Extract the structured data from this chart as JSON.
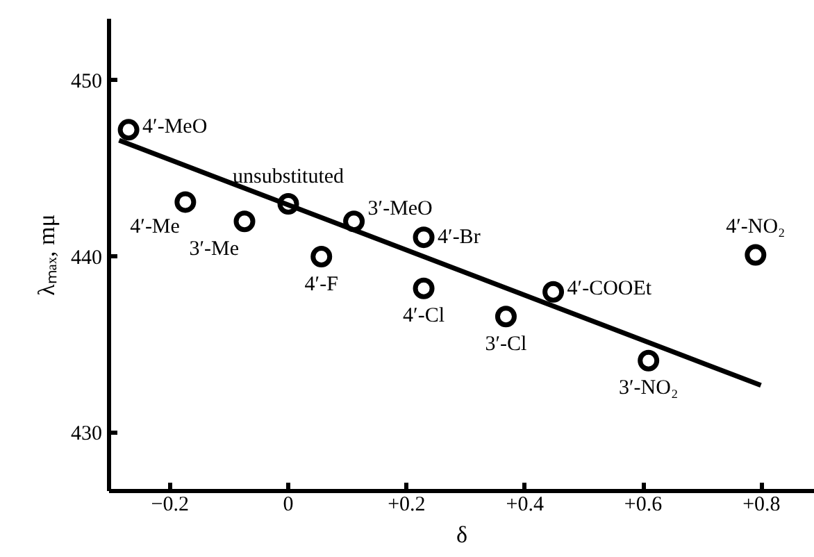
{
  "chart_data": {
    "type": "scatter",
    "xlabel": "δ",
    "ylabel": "λₘₐₓ, mμ",
    "xlim": [
      -0.303,
      0.89
    ],
    "ylim": [
      426.7,
      453.5
    ],
    "xticks": [
      {
        "value": -0.2,
        "label": "−0.2"
      },
      0,
      {
        "value": 0.2,
        "label": "+0.2"
      },
      {
        "value": 0.4,
        "label": "+0.4"
      },
      {
        "value": 0.6,
        "label": "+0.6"
      },
      {
        "value": 0.8,
        "label": "+0.8"
      }
    ],
    "yticks": [
      430,
      440,
      450
    ],
    "grid": false,
    "series": [
      {
        "color": "#000000",
        "marker": "circle",
        "x": [
          -0.27,
          -0.174,
          -0.074,
          0,
          0.056,
          0.111,
          0.229,
          0.229,
          0.368,
          0.448,
          0.609,
          0.79
        ],
        "values": [
          447.2,
          443.1,
          442.0,
          443.0,
          440.0,
          442.0,
          441.1,
          438.2,
          436.6,
          438.0,
          434.1,
          440.1
        ]
      },
      {
        "type": "line",
        "color": "#000000",
        "line_style": "solid",
        "x": [
          -0.286,
          0.799
        ],
        "values": [
          446.6,
          432.7
        ]
      }
    ],
    "annotations": [
      {
        "text": "4′-MeO",
        "x": -0.27,
        "y": 447.2
      },
      {
        "text": "4′-Me",
        "x": -0.174,
        "y": 443.1
      },
      {
        "text": "3′-Me",
        "x": -0.074,
        "y": 442.0
      },
      {
        "text": "unsubstituted",
        "x": 0,
        "y": 443.0
      },
      {
        "text": "4′-F",
        "x": 0.056,
        "y": 440.0
      },
      {
        "text": "3′-MeO",
        "x": 0.111,
        "y": 442.0
      },
      {
        "text": "4′-Br",
        "x": 0.229,
        "y": 441.1
      },
      {
        "text": "4′-Cl",
        "x": 0.229,
        "y": 438.2
      },
      {
        "text": "3′-Cl",
        "x": 0.368,
        "y": 436.6
      },
      {
        "text": "4′-COOEt",
        "x": 0.448,
        "y": 438.0
      },
      {
        "text": "3′-NO₂",
        "x": 0.609,
        "y": 434.1
      },
      {
        "text": "4′-NO₂",
        "x": 0.79,
        "y": 440.1
      }
    ]
  }
}
